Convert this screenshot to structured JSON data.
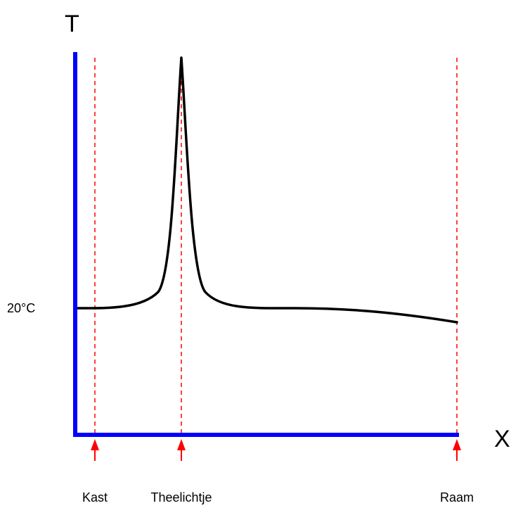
{
  "axes": {
    "y_title": "T",
    "x_title": "X",
    "y_tick_label": "20°C",
    "axis_color": "#0000ff"
  },
  "markers": [
    {
      "label": "Kast"
    },
    {
      "label": "Theelichtje"
    },
    {
      "label": "Raam"
    }
  ],
  "curve": {
    "color": "#000000",
    "description_points": "flat at 20°C, sharp peak at Theelichtje, gently falling towards Raam"
  },
  "guide_color": "#ff0000",
  "arrow_color": "#ff0000"
}
